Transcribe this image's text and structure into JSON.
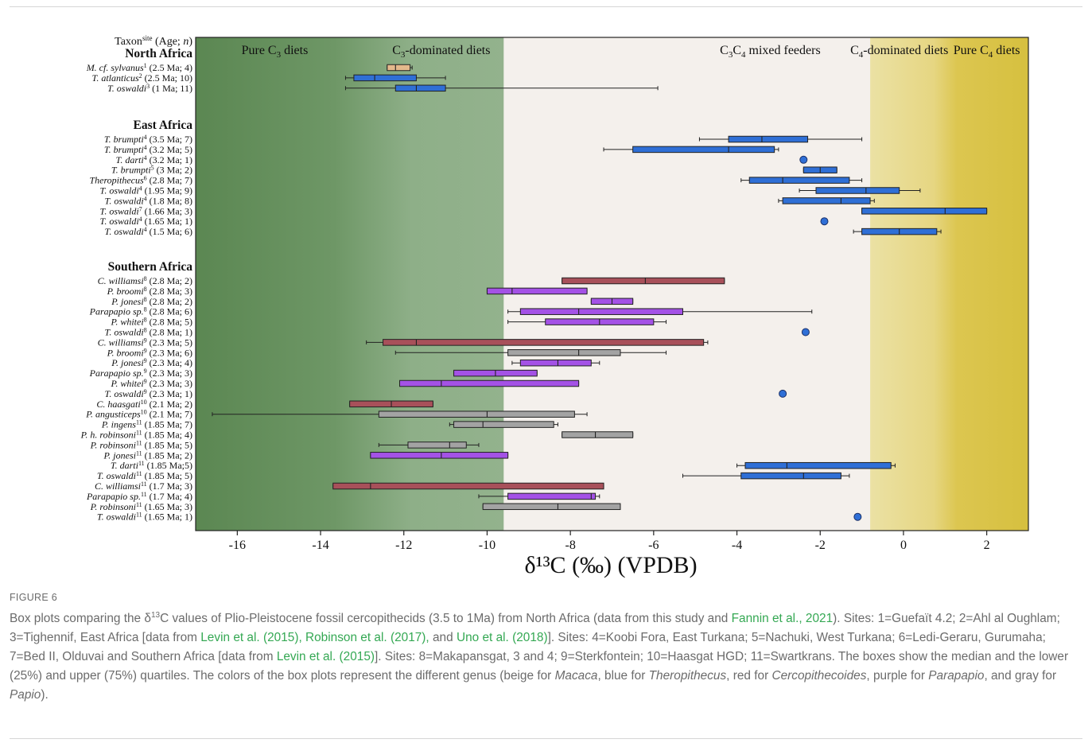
{
  "chart_data": {
    "type": "box",
    "xlabel": "δ¹³C (‰) (VPDB)",
    "xlim": [
      -17,
      3
    ],
    "xticks": [
      -16,
      -14,
      -12,
      -10,
      -8,
      -6,
      -4,
      -2,
      0,
      2
    ],
    "header": "Taxon",
    "header_sup": "site",
    "header_rest": " (Age; ",
    "header_n": "n",
    "header_close": ")",
    "zones": [
      {
        "label": "Pure C",
        "sub": "3",
        "rest": " diets",
        "center": -15.1
      },
      {
        "label": "C",
        "sub": "3",
        "rest": "-dominated diets",
        "center": -11.1
      },
      {
        "label": "C",
        "sub": "3",
        "mid": "C",
        "sub2": "4",
        "rest": " mixed feeders",
        "center": -3.2
      },
      {
        "label": "C",
        "sub": "4",
        "rest": "-dominated diets",
        "center": -0.1
      },
      {
        "label": "Pure C",
        "sub": "4",
        "rest": " diets",
        "center": 2.0
      }
    ],
    "zone_bounds": {
      "c3_end": -9.6,
      "c4_start": -0.8,
      "pure_c4_start": 1.0
    },
    "colors": {
      "Macaca": "#e4b98c",
      "Theropithecus": "#2f6fd6",
      "Cercopithecoides": "#a8505a",
      "Parapapio": "#a452e6",
      "Papio": "#a3a3a3",
      "zone_dark_green": "#5e8a56",
      "zone_light_green": "#8fb08a",
      "zone_mixed": "#f4f0ec",
      "zone_light_yellow": "#eadc8c",
      "zone_yellow": "#d9c445"
    },
    "groups": [
      {
        "name": "North Africa",
        "rows": [
          {
            "taxon": "M. cf. sylvanus",
            "site": "1",
            "rest": " (2.5 Ma; 4)",
            "genus": "Macaca",
            "min": -12.4,
            "q1": -12.4,
            "med": -12.2,
            "q3": -11.85,
            "max": -11.8
          },
          {
            "taxon": "T. atlanticus",
            "site": "2",
            "rest": " (2.5 Ma; 10)",
            "genus": "Theropithecus",
            "min": -13.4,
            "q1": -13.2,
            "med": -12.7,
            "q3": -11.7,
            "max": -11.0
          },
          {
            "taxon": "T. oswaldi",
            "site": "3",
            "rest": " (1 Ma; 11)",
            "genus": "Theropithecus",
            "min": -13.4,
            "q1": -12.2,
            "med": -11.7,
            "q3": -11.0,
            "max": -5.9
          }
        ]
      },
      {
        "name": "East Africa",
        "rows": [
          {
            "taxon": "T. brumpti",
            "site": "4",
            "rest": " (3.5 Ma; 7)",
            "genus": "Theropithecus",
            "min": -4.9,
            "q1": -4.2,
            "med": -3.4,
            "q3": -2.3,
            "max": -1.0
          },
          {
            "taxon": "T. brumpti",
            "site": "4",
            "rest": " (3.2 Ma; 5)",
            "genus": "Theropithecus",
            "min": -7.2,
            "q1": -6.5,
            "med": -4.2,
            "q3": -3.1,
            "max": -3.0
          },
          {
            "taxon": "T. darti",
            "site": "4",
            "rest": " (3.2 Ma; 1)",
            "genus": "Theropithecus",
            "point": -2.4
          },
          {
            "taxon": "T. brumpti",
            "site": "5",
            "rest": " (3 Ma; 2)",
            "genus": "Theropithecus",
            "min": -2.4,
            "q1": -2.4,
            "med": -2.0,
            "q3": -1.6,
            "max": -1.6
          },
          {
            "taxon": "Theropithecus",
            "site": "6",
            "rest": " (2.8 Ma; 7)",
            "genus": "Theropithecus",
            "min": -3.9,
            "q1": -3.7,
            "med": -2.9,
            "q3": -1.3,
            "max": -1.0
          },
          {
            "taxon": "T. oswaldi",
            "site": "4",
            "rest": " (1.95 Ma; 9)",
            "genus": "Theropithecus",
            "min": -2.5,
            "q1": -2.1,
            "med": -0.9,
            "q3": -0.1,
            "max": 0.4
          },
          {
            "taxon": "T. oswaldi",
            "site": "4",
            "rest": " (1.8 Ma; 8)",
            "genus": "Theropithecus",
            "min": -3.0,
            "q1": -2.9,
            "med": -1.5,
            "q3": -0.8,
            "max": -0.7
          },
          {
            "taxon": "T. oswaldi",
            "site": "7",
            "rest": " (1.66 Ma; 3)",
            "genus": "Theropithecus",
            "min": -1.0,
            "q1": -1.0,
            "med": 1.0,
            "q3": 2.0,
            "max": 2.0
          },
          {
            "taxon": "T. oswaldi",
            "site": "4",
            "rest": " (1.65 Ma; 1)",
            "genus": "Theropithecus",
            "point": -1.9
          },
          {
            "taxon": "T. oswaldi",
            "site": "4",
            "rest": " (1.5 Ma; 6)",
            "genus": "Theropithecus",
            "min": -1.2,
            "q1": -1.0,
            "med": -0.1,
            "q3": 0.8,
            "max": 0.9
          }
        ]
      },
      {
        "name": "Southern Africa",
        "rows": [
          {
            "taxon": "C. williamsi",
            "site": "8",
            "rest": " (2.8 Ma; 2)",
            "genus": "Cercopithecoides",
            "min": -8.2,
            "q1": -8.2,
            "med": -6.2,
            "q3": -4.3,
            "max": -4.3
          },
          {
            "taxon": "P. broomi",
            "site": "8",
            "rest": " (2.8 Ma; 3)",
            "genus": "Parapapio",
            "min": -10.0,
            "q1": -10.0,
            "med": -9.4,
            "q3": -7.6,
            "max": -7.6
          },
          {
            "taxon": "P. jonesi",
            "site": "8",
            "rest": " (2.8 Ma; 2)",
            "genus": "Parapapio",
            "min": -7.5,
            "q1": -7.5,
            "med": -7.0,
            "q3": -6.5,
            "max": -6.5
          },
          {
            "taxon": "Parapapio sp.",
            "site": "8",
            "rest": " (2.8 Ma; 6)",
            "genus": "Parapapio",
            "min": -9.5,
            "q1": -9.2,
            "med": -7.8,
            "q3": -5.3,
            "max": -2.2
          },
          {
            "taxon": "P. whitei",
            "site": "8",
            "rest": " (2.8 Ma; 5)",
            "genus": "Parapapio",
            "min": -9.5,
            "q1": -8.6,
            "med": -7.3,
            "q3": -6.0,
            "max": -5.7
          },
          {
            "taxon": "T. oswaldi",
            "site": "8",
            "rest": " (2.8 Ma; 1)",
            "genus": "Theropithecus",
            "point": -2.35
          },
          {
            "taxon": "C. williamsi",
            "site": "9",
            "rest": " (2.3 Ma; 5)",
            "genus": "Cercopithecoides",
            "min": -12.9,
            "q1": -12.5,
            "med": -11.7,
            "q3": -4.8,
            "max": -4.7
          },
          {
            "taxon": "P. broomi",
            "site": "9",
            "rest": " (2.3 Ma; 6)",
            "genus": "Papio",
            "min": -12.2,
            "q1": -9.5,
            "med": -7.8,
            "q3": -6.8,
            "max": -5.7
          },
          {
            "taxon": "P. jonesi",
            "site": "9",
            "rest": " (2.3 Ma; 4)",
            "genus": "Parapapio",
            "min": -9.4,
            "q1": -9.2,
            "med": -8.3,
            "q3": -7.5,
            "max": -7.3
          },
          {
            "taxon": "Parapapio sp.",
            "site": "9",
            "rest": " (2.3 Ma; 3)",
            "genus": "Parapapio",
            "min": -10.8,
            "q1": -10.8,
            "med": -9.8,
            "q3": -8.8,
            "max": -8.8
          },
          {
            "taxon": "P. whitei",
            "site": "9",
            "rest": " (2.3 Ma; 3)",
            "genus": "Parapapio",
            "min": -12.1,
            "q1": -12.1,
            "med": -11.1,
            "q3": -7.8,
            "max": -7.8
          },
          {
            "taxon": "T. oswaldi",
            "site": "9",
            "rest": " (2.3 Ma; 1)",
            "genus": "Theropithecus",
            "point": -2.9
          },
          {
            "taxon": "C. haasgati",
            "site": "10",
            "rest": " (2.1 Ma; 2)",
            "genus": "Cercopithecoides",
            "min": -13.3,
            "q1": -13.3,
            "med": -12.3,
            "q3": -11.3,
            "max": -11.3
          },
          {
            "taxon": "P. angusticeps",
            "site": "10",
            "rest": " (2.1 Ma; 7)",
            "genus": "Papio",
            "min": -16.6,
            "q1": -12.6,
            "med": -10.0,
            "q3": -7.9,
            "max": -7.6
          },
          {
            "taxon": "P. ingens",
            "site": "11",
            "rest": " (1.85 Ma; 7)",
            "genus": "Papio",
            "min": -10.9,
            "q1": -10.8,
            "med": -10.1,
            "q3": -8.4,
            "max": -8.3
          },
          {
            "taxon": "P. h. robinsoni",
            "site": "11",
            "rest": " (1.85 Ma; 4)",
            "genus": "Papio",
            "min": -8.2,
            "q1": -8.2,
            "med": -7.4,
            "q3": -6.5,
            "max": -6.5
          },
          {
            "taxon": "P. robinsoni",
            "site": "11",
            "rest": " (1.85 Ma; 5)",
            "genus": "Papio",
            "min": -12.6,
            "q1": -11.9,
            "med": -10.9,
            "q3": -10.5,
            "max": -10.2
          },
          {
            "taxon": "P. jonesi",
            "site": "11",
            "rest": " (1.85 Ma; 2)",
            "genus": "Parapapio",
            "min": -12.8,
            "q1": -12.8,
            "med": -11.1,
            "q3": -9.5,
            "max": -9.5
          },
          {
            "taxon": "T. darti",
            "site": "11",
            "rest": " (1.85 Ma;5)",
            "genus": "Theropithecus",
            "min": -4.0,
            "q1": -3.8,
            "med": -2.8,
            "q3": -0.3,
            "max": -0.2
          },
          {
            "taxon": "T. oswaldi",
            "site": "11",
            "rest": " (1.85 Ma; 5)",
            "genus": "Theropithecus",
            "min": -5.3,
            "q1": -3.9,
            "med": -2.4,
            "q3": -1.5,
            "max": -1.3
          },
          {
            "taxon": "C. williamsi",
            "site": "11",
            "rest": " (1.7 Ma; 3)",
            "genus": "Cercopithecoides",
            "min": -13.7,
            "q1": -13.7,
            "med": -12.8,
            "q3": -7.2,
            "max": -7.2
          },
          {
            "taxon": "Parapapio sp.",
            "site": "11",
            "rest": " (1.7 Ma; 4)",
            "genus": "Parapapio",
            "min": -10.2,
            "q1": -9.5,
            "med": -7.5,
            "q3": -7.4,
            "max": -7.3
          },
          {
            "taxon": "P. robinsoni",
            "site": "11",
            "rest": " (1.65 Ma; 3)",
            "genus": "Papio",
            "min": -10.1,
            "q1": -10.1,
            "med": -8.3,
            "q3": -6.8,
            "max": -6.8
          },
          {
            "taxon": "T. oswaldi",
            "site": "11",
            "rest": " (1.65 Ma; 1)",
            "genus": "Theropithecus",
            "point": -1.1
          }
        ]
      }
    ]
  },
  "caption": {
    "label": "FIGURE 6",
    "parts": [
      {
        "t": "Box plots comparing the δ"
      },
      {
        "t": "13",
        "sup": true
      },
      {
        "t": "C values of Plio-Pleistocene fossil cercopithecids (3.5 to 1Ma) from North Africa (data from this study and "
      },
      {
        "t": "Fannin et al., 2021",
        "link": true
      },
      {
        "t": "). Sites: 1=Guefaït 4.2; 2=Ahl al Oughlam; 3=Tighennif, East Africa [data from "
      },
      {
        "t": "Levin et al. (2015), Robinson et al. (2017),",
        "link": true
      },
      {
        "t": " and "
      },
      {
        "t": "Uno et al. (2018)",
        "link": true
      },
      {
        "t": "]. Sites: 4=Koobi Fora, East Turkana; 5=Nachuki, West Turkana; 6=Ledi-Geraru, Gurumaha; 7=Bed II, Olduvai and Southern Africa [data from "
      },
      {
        "t": "Levin et al. (2015)",
        "link": true
      },
      {
        "t": "]. Sites: 8=Makapansgat, 3 and 4; 9=Sterkfontein; 10=Haasgat HGD; 11=Swartkrans. The boxes show the median and the lower (25%) and upper (75%) quartiles. The colors of the box plots represent the different genus (beige for "
      },
      {
        "t": "Macaca",
        "italic": true
      },
      {
        "t": ", blue for "
      },
      {
        "t": "Theropithecus",
        "italic": true
      },
      {
        "t": ", red for "
      },
      {
        "t": "Cercopithecoides",
        "italic": true
      },
      {
        "t": ", purple for "
      },
      {
        "t": "Parapapio",
        "italic": true
      },
      {
        "t": ", and gray for "
      },
      {
        "t": "Papio",
        "italic": true
      },
      {
        "t": ")."
      }
    ]
  }
}
